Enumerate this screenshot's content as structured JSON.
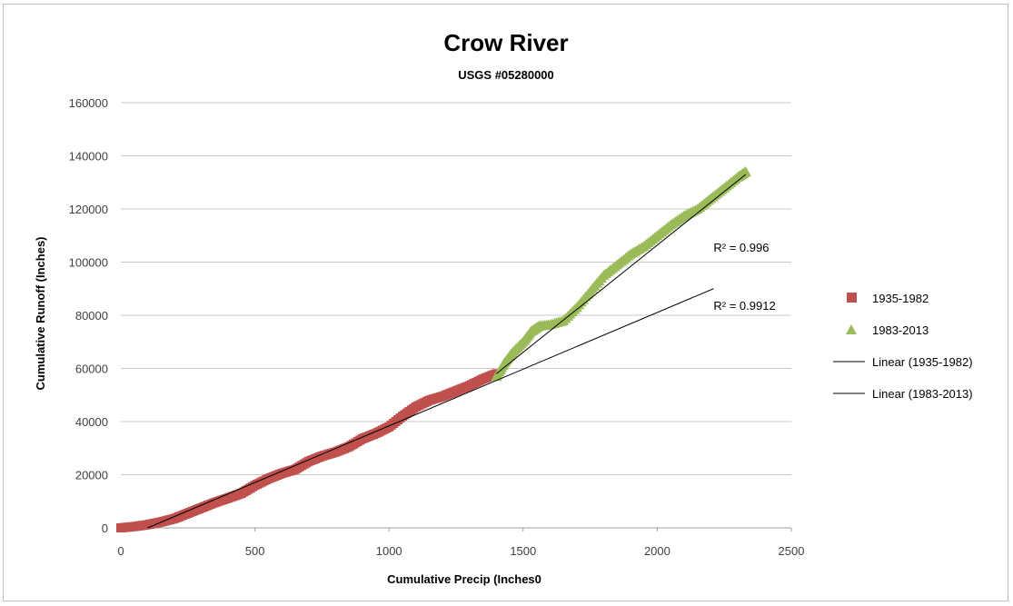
{
  "chart_data": {
    "type": "scatter",
    "title": "Crow River",
    "subtitle": "USGS #05280000",
    "xlabel": "Cumulative Precip (Inches0",
    "ylabel": "Cumulative Runoff (Inches)",
    "xlim": [
      0,
      2500
    ],
    "ylim": [
      0,
      160000
    ],
    "x_ticks": [
      0,
      500,
      1000,
      1500,
      2000,
      2500
    ],
    "y_ticks": [
      0,
      20000,
      40000,
      60000,
      80000,
      100000,
      120000,
      140000,
      160000
    ],
    "grid": "horizontal",
    "legend_position": "right",
    "series": [
      {
        "name": "1935-1982",
        "marker": "square",
        "color": "#c0504d",
        "points": [
          [
            0,
            0
          ],
          [
            50,
            500
          ],
          [
            100,
            1200
          ],
          [
            150,
            2200
          ],
          [
            200,
            3500
          ],
          [
            250,
            5500
          ],
          [
            300,
            7500
          ],
          [
            350,
            9500
          ],
          [
            400,
            11200
          ],
          [
            450,
            13000
          ],
          [
            500,
            16000
          ],
          [
            550,
            18500
          ],
          [
            600,
            20500
          ],
          [
            650,
            22000
          ],
          [
            700,
            25000
          ],
          [
            750,
            27000
          ],
          [
            800,
            28500
          ],
          [
            850,
            30500
          ],
          [
            900,
            33500
          ],
          [
            950,
            35500
          ],
          [
            1000,
            38000
          ],
          [
            1050,
            42000
          ],
          [
            1100,
            45500
          ],
          [
            1150,
            48000
          ],
          [
            1200,
            49500
          ],
          [
            1250,
            51500
          ],
          [
            1300,
            53500
          ],
          [
            1350,
            56000
          ],
          [
            1400,
            58000
          ]
        ]
      },
      {
        "name": "1983-2013",
        "marker": "triangle",
        "color": "#9bbb59",
        "points": [
          [
            1400,
            57000
          ],
          [
            1430,
            62000
          ],
          [
            1460,
            66000
          ],
          [
            1500,
            70000
          ],
          [
            1530,
            74000
          ],
          [
            1560,
            76000
          ],
          [
            1600,
            76500
          ],
          [
            1650,
            78000
          ],
          [
            1700,
            83000
          ],
          [
            1750,
            89000
          ],
          [
            1800,
            95000
          ],
          [
            1850,
            99000
          ],
          [
            1900,
            103000
          ],
          [
            1950,
            106000
          ],
          [
            2000,
            110000
          ],
          [
            2050,
            114000
          ],
          [
            2100,
            117500
          ],
          [
            2150,
            120000
          ],
          [
            2200,
            124000
          ],
          [
            2250,
            128000
          ],
          [
            2300,
            132000
          ],
          [
            2330,
            134000
          ]
        ]
      }
    ],
    "trendlines": [
      {
        "name": "Linear (1935-1982)",
        "x_start": 100,
        "y_start": 0,
        "x_end": 2210,
        "y_end": 90000,
        "r2_label": "R² = 0.9912",
        "color": "#000000"
      },
      {
        "name": "Linear (1983-2013)",
        "x_start": 1400,
        "y_start": 58000,
        "x_end": 2330,
        "y_end": 133000,
        "r2_label": "R² = 0.996",
        "color": "#000000"
      }
    ],
    "r2_anchors": [
      {
        "x": 2210,
        "y": 104000
      },
      {
        "x": 2210,
        "y": 82000
      }
    ]
  }
}
